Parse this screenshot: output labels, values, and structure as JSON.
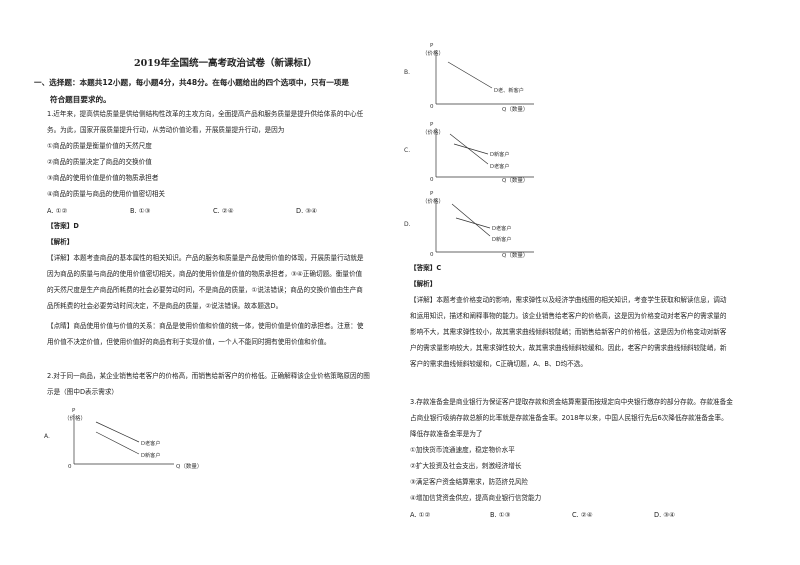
{
  "title": "2019年全国统一高考政治试卷（新课标Ⅰ）",
  "section1": {
    "line1": "一、选择题：本题共12小题，每小题4分，共48分。在每小题给出的四个选项中，只有一项是",
    "line2": "符合题目要求的。"
  },
  "q1": {
    "stem1": "1.近年来，提高供给质量是供给侧结构性改革的主攻方向，全面提高产品和服务质量是提升供给体系的中心任",
    "stem2": "务。为此，国家开展质量提升行动，从劳动价值论看，开展质量提升行动，是因为",
    "items": [
      "①商品的质量是衡量价值的天然尺度",
      "②商品的质量决定了商品的交换价值",
      "③商品的使用价值是价值的物质承担者",
      "④商品的质量与商品的使用价值密切相关"
    ],
    "options": [
      "A. ①②",
      "B. ①③",
      "C. ②④",
      "D. ③④"
    ],
    "answer": "【答案】D",
    "analysis_label": "【解析】",
    "detail": [
      "【详解】本题考查商品的基本属性的相关知识。产品的服务和质量是产品使用价值的体现，开展质量行动就是",
      "因为商品的质量与商品的使用价值密切相关，商品的使用价值是价值的物质承担者，③④正确切题。衡量价值",
      "的天然尺度是生产商品所耗费的社会必要劳动时间，不是商品的质量，①说法错误；商品的交换价值由生产商",
      "品所耗费的社会必要劳动时间决定，不是商品的质量，②说法错误。故本题选D。"
    ],
    "tip": [
      "【点睛】商品使用价值与价值的关系：商品是使用价值和价值的统一体，使用价值是价值的承担者。注意：使",
      "用价值不决定价值，但使用价值好的商品有利于实现价值，一个人不能同时拥有使用价值和价值。"
    ]
  },
  "q2": {
    "stem1": "2.对于同一商品，某企业销售给老客户的价格高，而销售给新客户的价格低。正确解释该企业价格策略原因的图",
    "stem2": "示是（图中D表示需求）",
    "answer": "【答案】C",
    "analysis_label": "【解析】",
    "detail": [
      "【详解】本题考查价格变动的影响，需求弹性以及经济学曲线图的相关知识，考查学生获取和解读信息，调动",
      "和运用知识，描述和阐释事物的能力。该企业销售给老客户的价格高，这是因为价格变动对老客户的需求量的",
      "影响不大，其需求弹性较小，故其需求曲线倾斜较陡峭；而销售给新客户的价格低，这是因为价格变动对新客",
      "户的需求量影响较大，其需求弹性较大，故其需求曲线倾斜较缓和。因此，老客户的需求曲线倾斜较陡峭，新",
      "客户的需求曲线倾斜较缓和，C正确切题，A、B、D均不选。"
    ]
  },
  "graphs": {
    "p_label": "P",
    "price_label": "（价格）",
    "q_label": "Q（数量）",
    "origin": "0",
    "A": {
      "letter": "A.",
      "curves": [
        "D老客户",
        "D新客户"
      ]
    },
    "B": {
      "letter": "B.",
      "curves": [
        "D老、新客户"
      ]
    },
    "C": {
      "letter": "C.",
      "curves": [
        "D新客户",
        "D老客户"
      ]
    },
    "D": {
      "letter": "D.",
      "curves": [
        "D老客户",
        "D新客户"
      ]
    }
  },
  "q3": {
    "stem": [
      "3.存款准备金是商业银行为保证客户提取存款和资金结算需要而按规定向中央银行缴存的部分存款。存款准备金",
      "占商业银行吸纳存款总额的比率就是存款准备金率。2018年以来，中国人民银行先后6次降低存款准备金率。",
      "降低存款准备金率是为了"
    ],
    "items": [
      "①加快货币流通速度，稳定物价水平",
      "②扩大投资及社会支出，刺激经济增长",
      "③满足客户资金结算需求，防范挤兑风险",
      "④增加信贷资金供应，提高商业银行信贷能力"
    ],
    "options": [
      "A. ①②",
      "B. ①③",
      "C. ②④",
      "D. ③④"
    ]
  }
}
